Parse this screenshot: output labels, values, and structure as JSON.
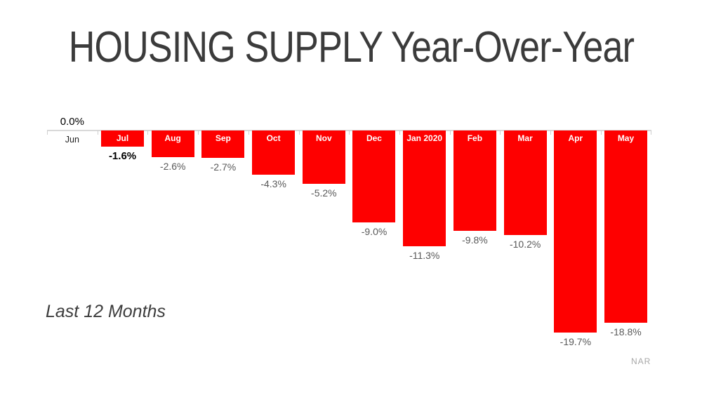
{
  "title": "HOUSING SUPPLY Year-Over-Year",
  "caption": "Last 12 Months",
  "source": "NAR",
  "colors": {
    "bar": "#fe0000",
    "title_text": "#3b3b3b",
    "value_label": "#595959",
    "value_label_emphasis": "#000000",
    "bar_month_text": "#ffffff",
    "axis": "#d9d9d9",
    "source_text": "#a8a8a8"
  },
  "chart_data": {
    "type": "bar",
    "title": "HOUSING SUPPLY Year-Over-Year",
    "categories": [
      "Jun",
      "Jul",
      "Aug",
      "Sep",
      "Oct",
      "Nov",
      "Dec",
      "Jan 2020",
      "Feb",
      "Mar",
      "Apr",
      "May"
    ],
    "values": [
      0.0,
      -1.6,
      -2.6,
      -2.7,
      -4.3,
      -5.2,
      -9.0,
      -11.3,
      -9.8,
      -10.2,
      -19.7,
      -18.8
    ],
    "value_labels": [
      "0.0%",
      "-1.6%",
      "-2.6%",
      "-2.7%",
      "-4.3%",
      "-5.2%",
      "-9.0%",
      "-11.3%",
      "-9.8%",
      "-10.2%",
      "-19.7%",
      "-18.8%"
    ],
    "emphasis_index": 1,
    "xlabel": "",
    "ylabel": "",
    "ylim": [
      -20,
      0
    ],
    "grid": false,
    "legend": false,
    "bar_color": "#fe0000",
    "annotation": "Last 12 Months",
    "source": "NAR",
    "axis_position": "top",
    "data_label_position": "outside-end"
  }
}
